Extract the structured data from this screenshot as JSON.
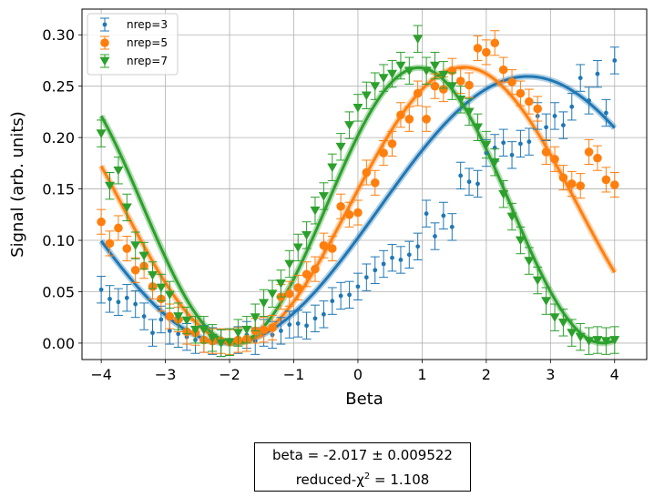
{
  "chart_data": {
    "type": "scatter",
    "title": "",
    "xlabel": "Beta",
    "ylabel": "Signal (arb. units)",
    "xlim": [
      -4.3,
      4.5
    ],
    "ylim": [
      -0.016,
      0.325
    ],
    "xticks": [
      -4,
      -3,
      -2,
      -1,
      0,
      1,
      2,
      3,
      4
    ],
    "xtick_labels": [
      "−4",
      "−3",
      "−2",
      "−1",
      "0",
      "1",
      "2",
      "3",
      "4"
    ],
    "yticks": [
      0.0,
      0.05,
      0.1,
      0.15,
      0.2,
      0.25,
      0.3
    ],
    "ytick_labels": [
      "0.00",
      "0.05",
      "0.10",
      "0.15",
      "0.20",
      "0.25",
      "0.30"
    ],
    "grid": true,
    "legend_position": "top-left",
    "series": [
      {
        "name": "nrep=3",
        "color": "#1f77b4",
        "marker": "point",
        "yerr": 0.013,
        "fit": {
          "amplitude": 0.2595,
          "frequency": 0.3367,
          "phase_zero": -2.017
        },
        "x": [
          -4.0,
          -3.867,
          -3.733,
          -3.6,
          -3.467,
          -3.333,
          -3.2,
          -3.067,
          -2.933,
          -2.8,
          -2.667,
          -2.533,
          -2.4,
          -2.267,
          -2.133,
          -2.0,
          -1.867,
          -1.733,
          -1.6,
          -1.467,
          -1.333,
          -1.2,
          -1.067,
          -0.933,
          -0.8,
          -0.667,
          -0.533,
          -0.4,
          -0.267,
          -0.133,
          0.0,
          0.133,
          0.267,
          0.4,
          0.533,
          0.667,
          0.8,
          0.933,
          1.067,
          1.2,
          1.333,
          1.467,
          1.6,
          1.733,
          1.867,
          2.0,
          2.133,
          2.267,
          2.4,
          2.533,
          2.667,
          2.8,
          2.933,
          3.067,
          3.2,
          3.333,
          3.467,
          3.6,
          3.733,
          3.867,
          4.0
        ],
        "y": [
          0.052,
          0.043,
          0.04,
          0.044,
          0.038,
          0.026,
          0.01,
          0.023,
          0.012,
          0.009,
          0.006,
          0.003,
          0.004,
          0.002,
          0.0,
          0.001,
          0.003,
          0.008,
          0.002,
          0.01,
          0.008,
          0.012,
          0.018,
          0.019,
          0.017,
          0.024,
          0.028,
          0.041,
          0.046,
          0.047,
          0.055,
          0.064,
          0.071,
          0.077,
          0.083,
          0.081,
          0.086,
          0.094,
          0.126,
          0.104,
          0.124,
          0.113,
          0.163,
          0.157,
          0.155,
          0.185,
          0.19,
          0.195,
          0.183,
          0.194,
          0.196,
          0.221,
          0.21,
          0.221,
          0.212,
          0.23,
          0.258,
          0.236,
          0.262,
          0.224,
          0.275
        ]
      },
      {
        "name": "nrep=5",
        "color": "#ff7f0e",
        "marker": "circle",
        "yerr": 0.012,
        "fit": {
          "amplitude": 0.2685,
          "frequency": 0.4425,
          "phase_zero": -1.9
        },
        "x": [
          -4.0,
          -3.867,
          -3.733,
          -3.6,
          -3.467,
          -3.333,
          -3.2,
          -3.067,
          -2.933,
          -2.8,
          -2.667,
          -2.533,
          -2.4,
          -2.267,
          -2.133,
          -2.0,
          -1.867,
          -1.733,
          -1.6,
          -1.467,
          -1.333,
          -1.2,
          -1.067,
          -0.933,
          -0.8,
          -0.667,
          -0.533,
          -0.4,
          -0.267,
          -0.133,
          0.0,
          0.133,
          0.267,
          0.4,
          0.533,
          0.667,
          0.8,
          0.933,
          1.067,
          1.2,
          1.333,
          1.467,
          1.6,
          1.733,
          1.867,
          2.0,
          2.133,
          2.267,
          2.4,
          2.533,
          2.667,
          2.8,
          2.933,
          3.067,
          3.2,
          3.333,
          3.467,
          3.6,
          3.733,
          3.867,
          4.0
        ],
        "y": [
          0.118,
          0.097,
          0.112,
          0.092,
          0.071,
          0.075,
          0.055,
          0.043,
          0.026,
          0.023,
          0.011,
          0.01,
          0.003,
          0.002,
          0.002,
          0.001,
          0.003,
          0.004,
          0.012,
          0.013,
          0.015,
          0.045,
          0.048,
          0.054,
          0.067,
          0.072,
          0.095,
          0.092,
          0.133,
          0.125,
          0.127,
          0.166,
          0.156,
          0.185,
          0.194,
          0.222,
          0.218,
          0.243,
          0.218,
          0.25,
          0.247,
          0.265,
          0.255,
          0.251,
          0.287,
          0.283,
          0.292,
          0.266,
          0.254,
          0.243,
          0.235,
          0.228,
          0.186,
          0.179,
          0.161,
          0.155,
          0.153,
          0.186,
          0.18,
          0.159,
          0.154
        ]
      },
      {
        "name": "nrep=7",
        "color": "#2ca02c",
        "marker": "triangle-down",
        "yerr": 0.013,
        "fit": {
          "amplitude": 0.268,
          "frequency": 0.5475,
          "phase_zero": -1.92
        },
        "x": [
          -4.0,
          -3.867,
          -3.733,
          -3.6,
          -3.467,
          -3.333,
          -3.2,
          -3.067,
          -2.933,
          -2.8,
          -2.667,
          -2.533,
          -2.4,
          -2.267,
          -2.133,
          -2.0,
          -1.867,
          -1.733,
          -1.6,
          -1.467,
          -1.333,
          -1.2,
          -1.067,
          -0.933,
          -0.8,
          -0.667,
          -0.533,
          -0.4,
          -0.267,
          -0.133,
          0.0,
          0.133,
          0.267,
          0.4,
          0.533,
          0.667,
          0.8,
          0.933,
          1.067,
          1.2,
          1.333,
          1.467,
          1.6,
          1.733,
          1.867,
          2.0,
          2.133,
          2.267,
          2.4,
          2.533,
          2.667,
          2.8,
          2.933,
          3.067,
          3.2,
          3.333,
          3.467,
          3.6,
          3.733,
          3.867,
          4.0
        ],
        "y": [
          0.204,
          0.153,
          0.168,
          0.132,
          0.095,
          0.085,
          0.066,
          0.054,
          0.047,
          0.026,
          0.022,
          0.013,
          0.013,
          0.005,
          0.0,
          0.001,
          0.01,
          0.013,
          0.025,
          0.039,
          0.048,
          0.058,
          0.077,
          0.093,
          0.105,
          0.129,
          0.143,
          0.171,
          0.191,
          0.212,
          0.229,
          0.241,
          0.25,
          0.258,
          0.262,
          0.27,
          0.265,
          0.296,
          0.265,
          0.27,
          0.261,
          0.25,
          0.237,
          0.225,
          0.21,
          0.193,
          0.176,
          0.145,
          0.123,
          0.1,
          0.08,
          0.061,
          0.041,
          0.025,
          0.02,
          0.01,
          0.006,
          0.002,
          0.003,
          0.002,
          0.003
        ]
      }
    ]
  },
  "fit_result": {
    "line1": "beta =  -2.017 ±  0.009522",
    "line2_prefix": "reduced-χ",
    "line2_sup": "2",
    "line2_suffix": " =  1.108"
  }
}
